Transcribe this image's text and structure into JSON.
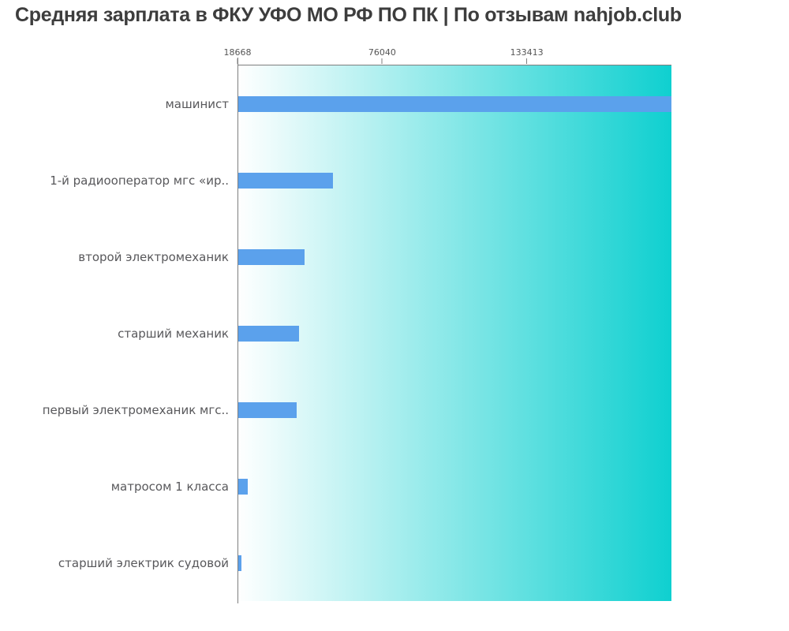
{
  "title": "Средняя зарплата в ФКУ УФО МО РФ ПО ПК | По отзывам nahjob.club",
  "colors": {
    "bar": "#5BA1EC",
    "gradient_start": "#FFFFFF",
    "gradient_end": "#0FD0D0",
    "axis_line": "#7E7E7E",
    "label_text": "#58585B",
    "tick_text": "#555555",
    "title_text": "#3D3D3D"
  },
  "chart_data": {
    "type": "bar",
    "orientation": "horizontal",
    "title": "Средняя зарплата в ФКУ УФО МО РФ ПО ПК | По отзывам nahjob.club",
    "categories": [
      "машинист",
      "1-й радиооператор мгс «ир..",
      "второй электромеханик",
      "старший механик",
      "первый электромеханик мгс..",
      "матросом 1 класса",
      "старший электрик судовой"
    ],
    "values": [
      190785,
      56300,
      45000,
      42800,
      41900,
      22400,
      19900
    ],
    "x_ticks": [
      "18668",
      "76040",
      "133413"
    ],
    "x_tick_values": [
      18668,
      76040,
      133413
    ],
    "xlim": [
      18668,
      190785
    ],
    "xlabel": "",
    "ylabel": "",
    "grid": false,
    "legend": false,
    "background": "horizontal gradient white to turquoise"
  }
}
